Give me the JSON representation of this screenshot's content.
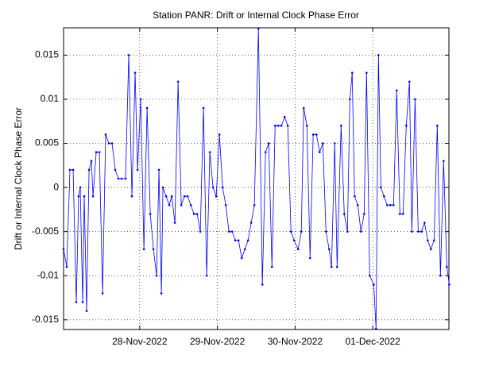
{
  "chart_data": {
    "type": "line",
    "title": "Station PANR: Drift or Internal Clock Phase Error",
    "y_label": "Drift or Internal Clock Phase Error",
    "color": "#0000ff",
    "grid": true,
    "xlim": [
      738852.02,
      738856.98
    ],
    "xticks": [
      {
        "value": 738853,
        "label": "28-Nov-2022"
      },
      {
        "value": 738854,
        "label": "29-Nov-2022"
      },
      {
        "value": 738855,
        "label": "30-Nov-2022"
      },
      {
        "value": 738856,
        "label": "01-Dec-2022"
      }
    ],
    "ylim": [
      -0.0161,
      0.0181
    ],
    "yticks": [
      -0.015,
      -0.01,
      -0.005,
      0,
      0.005,
      0.01,
      0.015
    ],
    "x": [
      738852.02,
      738852.061,
      738852.102,
      738852.143,
      738852.184,
      738852.214,
      738852.235,
      738852.266,
      738852.286,
      738852.317,
      738852.348,
      738852.378,
      738852.399,
      738852.44,
      738852.481,
      738852.522,
      738852.562,
      738852.603,
      738852.644,
      738852.685,
      738852.726,
      738852.767,
      738852.818,
      738852.859,
      738852.9,
      738852.941,
      738852.972,
      738853.013,
      738853.054,
      738853.095,
      738853.136,
      738853.177,
      738853.217,
      738853.248,
      738853.279,
      738853.299,
      738853.34,
      738853.381,
      738853.412,
      738853.453,
      738853.494,
      738853.535,
      738853.576,
      738853.617,
      738853.658,
      738853.699,
      738853.739,
      738853.78,
      738853.821,
      738853.862,
      738853.903,
      738853.944,
      738853.985,
      738854.026,
      738854.067,
      738854.108,
      738854.149,
      738854.19,
      738854.231,
      738854.272,
      738854.313,
      738854.354,
      738854.395,
      738854.435,
      738854.476,
      738854.528,
      738854.579,
      738854.62,
      738854.661,
      738854.702,
      738854.743,
      738854.783,
      738854.824,
      738854.865,
      738854.906,
      738854.947,
      738854.988,
      738855.039,
      738855.08,
      738855.111,
      738855.152,
      738855.193,
      738855.233,
      738855.275,
      738855.316,
      738855.357,
      738855.398,
      738855.438,
      738855.469,
      738855.51,
      738855.541,
      738855.592,
      738855.633,
      738855.674,
      738855.705,
      738855.735,
      738855.766,
      738855.807,
      738855.848,
      738855.889,
      738855.92,
      738855.96,
      738856.012,
      738856.042,
      738856.073,
      738856.104,
      738856.145,
      738856.186,
      738856.227,
      738856.268,
      738856.308,
      738856.349,
      738856.39,
      738856.431,
      738856.472,
      738856.503,
      738856.544,
      738856.585,
      738856.626,
      738856.666,
      738856.707,
      738856.748,
      738856.789,
      738856.83,
      738856.871,
      738856.912,
      738856.953,
      738856.984
    ],
    "values": [
      -0.007,
      -0.009,
      0.002,
      0.002,
      -0.013,
      -0.001,
      0,
      -0.013,
      -0.001,
      -0.014,
      0.002,
      0.003,
      -0.001,
      0.004,
      0.004,
      -0.012,
      0.006,
      0.005,
      0.005,
      0.002,
      0.001,
      0.001,
      0.001,
      0.015,
      -0.001,
      0.013,
      0.002,
      0.01,
      -0.007,
      0.009,
      -0.003,
      -0.007,
      -0.01,
      0.002,
      -0.012,
      0,
      -0.001,
      -0.002,
      -0.001,
      -0.004,
      0.012,
      -0.002,
      -0.001,
      -0.001,
      -0.002,
      -0.003,
      -0.003,
      -0.005,
      0.009,
      -0.01,
      0.004,
      0,
      -0.001,
      0.006,
      0,
      -0.002,
      -0.005,
      -0.005,
      -0.006,
      -0.006,
      -0.008,
      -0.007,
      -0.006,
      -0.004,
      -0.002,
      0.018,
      -0.011,
      0.004,
      0.005,
      -0.009,
      0.007,
      0.007,
      0.007,
      0.008,
      0.007,
      -0.005,
      -0.006,
      -0.007,
      -0.005,
      0.009,
      0.007,
      -0.008,
      0.006,
      0.006,
      0.004,
      0.005,
      -0.005,
      -0.007,
      -0.009,
      0.005,
      -0.009,
      0.007,
      -0.003,
      -0.005,
      0.01,
      0.013,
      -0.001,
      -0.002,
      -0.005,
      -0.003,
      0.013,
      -0.01,
      -0.011,
      -0.016,
      0.015,
      0,
      -0.001,
      -0.002,
      -0.002,
      -0.002,
      0.011,
      -0.003,
      -0.003,
      0.007,
      0.012,
      -0.005,
      0.01,
      -0.005,
      -0.005,
      -0.004,
      -0.006,
      -0.007,
      -0.006,
      0.007,
      -0.01,
      0.003,
      -0.009,
      -0.011
    ]
  }
}
